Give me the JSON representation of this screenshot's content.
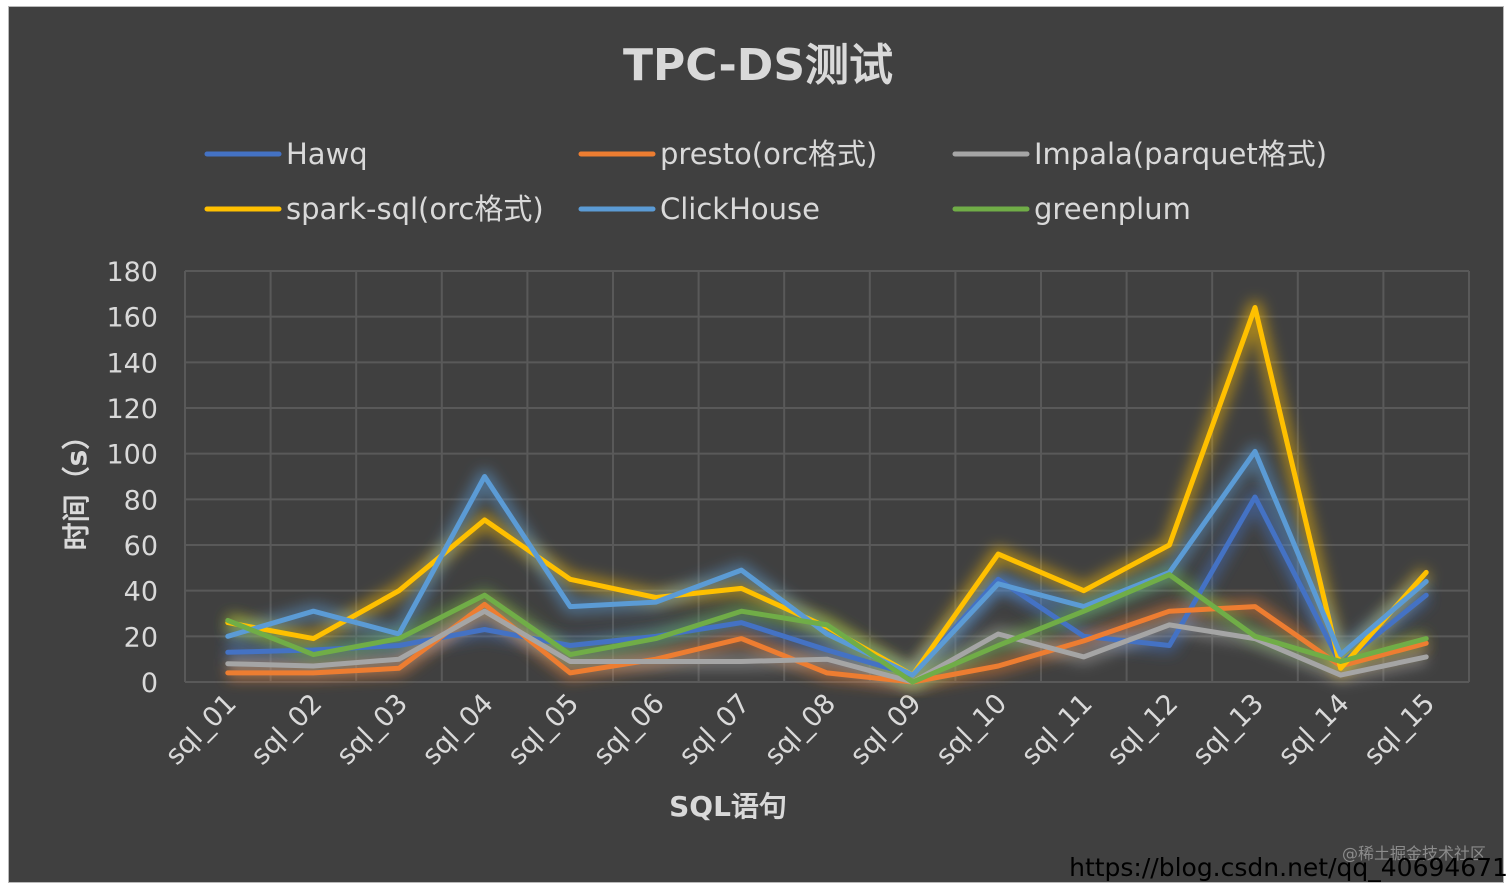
{
  "chart_data": {
    "type": "line",
    "title": "TPC-DS测试",
    "xlabel": "SQL语句",
    "ylabel": "时间（s）",
    "ylim": [
      0,
      180
    ],
    "yticks": [
      0,
      20,
      40,
      60,
      80,
      100,
      120,
      140,
      160,
      180
    ],
    "grid": true,
    "legend_position": "top",
    "categories": [
      "sql_01",
      "sql_02",
      "sql_03",
      "sql_04",
      "sql_05",
      "sql_06",
      "sql_07",
      "sql_08",
      "sql_09",
      "sql_10",
      "sql_11",
      "sql_12",
      "sql_13",
      "sql_14",
      "sql_15"
    ],
    "series": [
      {
        "name": "Hawq",
        "color": "#4472c4",
        "values": [
          13,
          14,
          16,
          23,
          16,
          20,
          26,
          14,
          3,
          45,
          20,
          16,
          81,
          8,
          38
        ]
      },
      {
        "name": "presto(orc格式)",
        "color": "#ed7d31",
        "values": [
          4,
          4,
          6,
          34,
          4,
          10,
          19,
          4,
          0,
          7,
          18,
          31,
          33,
          7,
          17
        ]
      },
      {
        "name": "Impala(parquet格式)",
        "color": "#a5a5a5",
        "values": [
          8,
          7,
          10,
          31,
          9,
          9,
          9,
          10,
          0,
          21,
          11,
          25,
          19,
          3,
          11
        ]
      },
      {
        "name": "spark-sql(orc格式)",
        "color": "#ffc000",
        "values": [
          26,
          19,
          40,
          71,
          45,
          37,
          41,
          24,
          3,
          56,
          40,
          60,
          164,
          6,
          48
        ]
      },
      {
        "name": "ClickHouse",
        "color": "#5b9bd5",
        "values": [
          20,
          31,
          21,
          90,
          33,
          35,
          49,
          21,
          3,
          43,
          33,
          48,
          101,
          12,
          44
        ]
      },
      {
        "name": "greenplum",
        "color": "#70ad47",
        "values": [
          27,
          12,
          19,
          38,
          12,
          19,
          31,
          25,
          0,
          16,
          31,
          47,
          20,
          9,
          19
        ]
      }
    ]
  },
  "watermark": {
    "small": "@稀土掘金技术社区",
    "url": "https://blog.csdn.net/qq_40694671"
  }
}
